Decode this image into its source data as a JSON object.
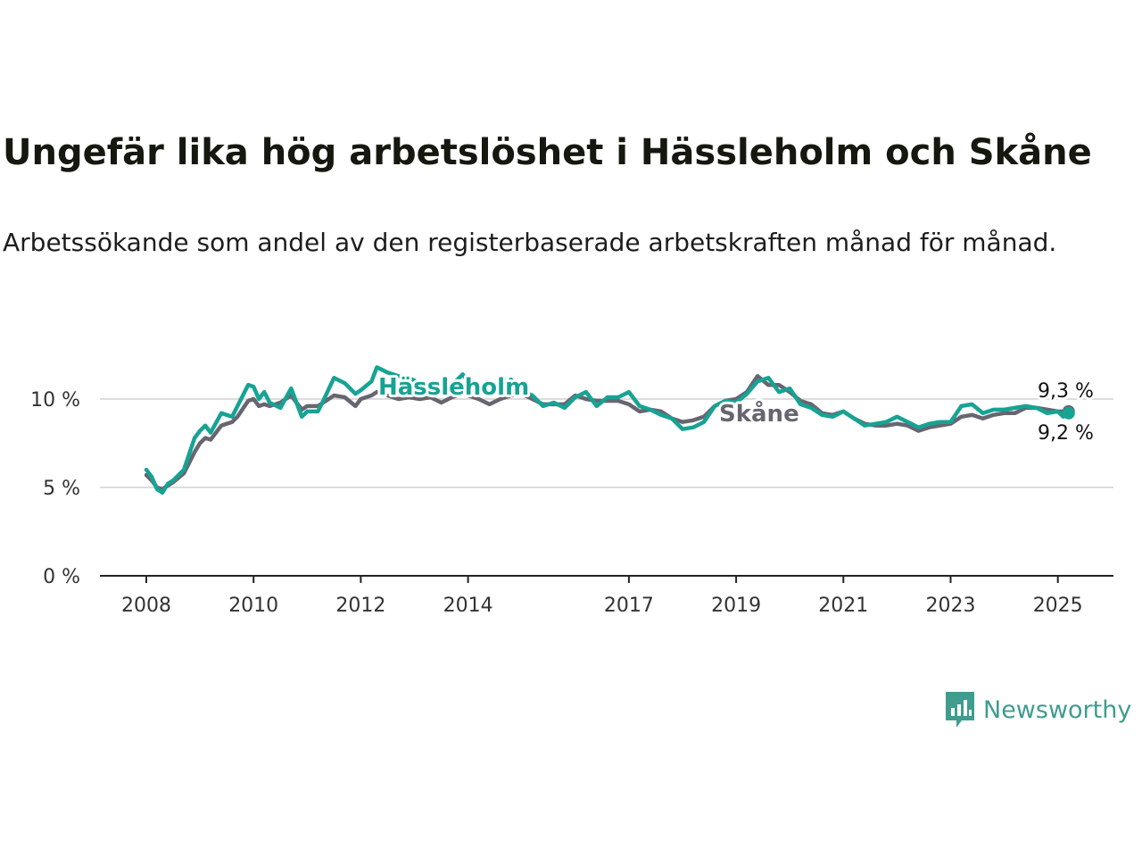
{
  "title": "Ungefär lika hög arbetslöshet i Hässleholm och Skåne",
  "subtitle": "Arbetssökande som andel av den registerbaserade arbetskraften månad för månad.",
  "brand": {
    "name": "Newsworthy",
    "icon": "newsworthy-chart-bubble-icon",
    "color": "#3f9c8f"
  },
  "chart_data": {
    "type": "line",
    "title": "Ungefär lika hög arbetslöshet i Hässleholm och Skåne",
    "xlabel": "",
    "ylabel": "",
    "xlim": [
      2008,
      2026
    ],
    "ylim": [
      0,
      12
    ],
    "yticks": [
      0,
      5,
      10
    ],
    "ytick_labels": [
      "0 %",
      "5 %",
      "10 %"
    ],
    "xticks": [
      2008,
      2010,
      2012,
      2014,
      2017,
      2019,
      2021,
      2023,
      2025
    ],
    "xtick_labels": [
      "2008",
      "2010",
      "2012",
      "2014",
      "2017",
      "2019",
      "2021",
      "2023",
      "2025"
    ],
    "grid": "horizontal",
    "legend": "inline labels",
    "series": [
      {
        "name": "Hässleholm",
        "color": "#16a394",
        "end_label": "9,2 %",
        "x": [
          2008.0,
          2008.1,
          2008.2,
          2008.3,
          2008.4,
          2008.5,
          2008.7,
          2008.9,
          2009.0,
          2009.1,
          2009.2,
          2009.4,
          2009.6,
          2009.7,
          2009.9,
          2010.0,
          2010.1,
          2010.2,
          2010.3,
          2010.5,
          2010.7,
          2010.9,
          2011.0,
          2011.2,
          2011.3,
          2011.5,
          2011.7,
          2011.9,
          2012.0,
          2012.2,
          2012.3,
          2012.5,
          2012.7,
          2012.9,
          2013.1,
          2013.3,
          2013.5,
          2013.7,
          2013.9,
          2014.0,
          2014.2,
          2014.4,
          2014.6,
          2014.8,
          2015.0,
          2015.2,
          2015.4,
          2015.6,
          2015.8,
          2016.0,
          2016.2,
          2016.4,
          2016.6,
          2016.8,
          2017.0,
          2017.2,
          2017.4,
          2017.6,
          2017.8,
          2018.0,
          2018.2,
          2018.4,
          2018.6,
          2018.8,
          2019.0,
          2019.2,
          2019.4,
          2019.6,
          2019.8,
          2020.0,
          2020.2,
          2020.4,
          2020.6,
          2020.8,
          2021.0,
          2021.2,
          2021.4,
          2021.6,
          2021.8,
          2022.0,
          2022.2,
          2022.4,
          2022.6,
          2022.8,
          2023.0,
          2023.2,
          2023.4,
          2023.6,
          2023.8,
          2024.0,
          2024.2,
          2024.4,
          2024.6,
          2024.8,
          2025.0,
          2025.1,
          2025.2
        ],
        "values": [
          6.0,
          5.6,
          4.9,
          4.7,
          5.2,
          5.4,
          6.0,
          7.8,
          8.2,
          8.5,
          8.1,
          9.2,
          9.0,
          9.6,
          10.8,
          10.7,
          10.0,
          10.4,
          9.8,
          9.5,
          10.6,
          9.0,
          9.3,
          9.3,
          9.9,
          11.2,
          10.9,
          10.3,
          10.5,
          11.0,
          11.8,
          11.5,
          11.3,
          11.2,
          10.9,
          10.6,
          10.7,
          10.8,
          11.4,
          11.0,
          10.4,
          10.5,
          10.3,
          11.1,
          10.5,
          10.2,
          9.6,
          9.8,
          9.5,
          10.1,
          10.4,
          9.6,
          10.1,
          10.1,
          10.4,
          9.6,
          9.4,
          9.1,
          8.9,
          8.3,
          8.4,
          8.7,
          9.6,
          9.9,
          9.8,
          10.3,
          11.0,
          11.2,
          10.4,
          10.6,
          9.7,
          9.5,
          9.1,
          9.0,
          9.3,
          8.9,
          8.5,
          8.6,
          8.7,
          9.0,
          8.7,
          8.4,
          8.6,
          8.7,
          8.7,
          9.6,
          9.7,
          9.2,
          9.4,
          9.4,
          9.5,
          9.6,
          9.5,
          9.2,
          9.3,
          9.0,
          9.2
        ]
      },
      {
        "name": "Skåne",
        "color": "#676670",
        "end_label": "9,3 %",
        "x": [
          2008.0,
          2008.1,
          2008.2,
          2008.3,
          2008.4,
          2008.5,
          2008.7,
          2008.9,
          2009.0,
          2009.1,
          2009.2,
          2009.4,
          2009.6,
          2009.7,
          2009.9,
          2010.0,
          2010.1,
          2010.2,
          2010.3,
          2010.5,
          2010.7,
          2010.9,
          2011.0,
          2011.2,
          2011.3,
          2011.5,
          2011.7,
          2011.9,
          2012.0,
          2012.2,
          2012.3,
          2012.5,
          2012.7,
          2012.9,
          2013.1,
          2013.3,
          2013.5,
          2013.7,
          2013.9,
          2014.0,
          2014.2,
          2014.4,
          2014.6,
          2014.8,
          2015.0,
          2015.2,
          2015.4,
          2015.6,
          2015.8,
          2016.0,
          2016.2,
          2016.4,
          2016.6,
          2016.8,
          2017.0,
          2017.2,
          2017.4,
          2017.6,
          2017.8,
          2018.0,
          2018.2,
          2018.4,
          2018.6,
          2018.8,
          2019.0,
          2019.2,
          2019.4,
          2019.6,
          2019.8,
          2020.0,
          2020.2,
          2020.4,
          2020.6,
          2020.8,
          2021.0,
          2021.2,
          2021.4,
          2021.6,
          2021.8,
          2022.0,
          2022.2,
          2022.4,
          2022.6,
          2022.8,
          2023.0,
          2023.2,
          2023.4,
          2023.6,
          2023.8,
          2024.0,
          2024.2,
          2024.4,
          2024.6,
          2024.8,
          2025.0,
          2025.1,
          2025.2
        ],
        "values": [
          5.7,
          5.4,
          5.0,
          4.9,
          5.1,
          5.3,
          5.8,
          7.0,
          7.5,
          7.8,
          7.7,
          8.5,
          8.7,
          9.0,
          9.9,
          10.0,
          9.6,
          9.7,
          9.6,
          9.8,
          10.2,
          9.4,
          9.6,
          9.6,
          9.8,
          10.2,
          10.1,
          9.6,
          10.0,
          10.2,
          10.4,
          10.2,
          10.0,
          10.1,
          10.0,
          10.1,
          9.8,
          10.1,
          10.3,
          10.2,
          10.0,
          9.7,
          10.0,
          10.2,
          10.3,
          10.0,
          9.7,
          9.7,
          9.7,
          10.2,
          10.0,
          9.9,
          9.9,
          9.9,
          9.7,
          9.3,
          9.4,
          9.3,
          8.9,
          8.7,
          8.8,
          9.0,
          9.6,
          9.9,
          10.0,
          10.4,
          11.3,
          10.8,
          10.8,
          10.4,
          9.9,
          9.7,
          9.2,
          9.1,
          9.3,
          8.9,
          8.6,
          8.5,
          8.5,
          8.6,
          8.5,
          8.2,
          8.4,
          8.5,
          8.6,
          9.0,
          9.1,
          8.9,
          9.1,
          9.2,
          9.2,
          9.5,
          9.5,
          9.4,
          9.3,
          9.3,
          9.3
        ]
      }
    ]
  }
}
